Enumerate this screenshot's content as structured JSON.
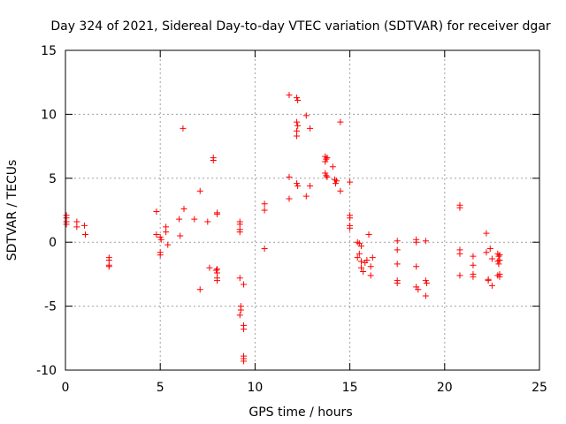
{
  "chart_data": {
    "type": "scatter",
    "title": "Day 324 of 2021, Sidereal Day-to-day VTEC variation (SDTVAR) for receiver dgar",
    "xlabel": "GPS time / hours",
    "ylabel": "SDTVAR / TECUs",
    "xlim": [
      0,
      25
    ],
    "ylim": [
      -10,
      15
    ],
    "xticks": [
      0,
      5,
      10,
      15,
      20,
      25
    ],
    "yticks": [
      -10,
      -5,
      0,
      5,
      10,
      15
    ],
    "xtick_labels": [
      "0",
      "5",
      "10",
      "15",
      "20",
      "25"
    ],
    "ytick_labels": [
      "-10",
      "-5",
      "0",
      "5",
      "10",
      "15"
    ],
    "grid": true,
    "marker": "+",
    "color": "#ff0000",
    "series": [
      {
        "name": "SDTVAR",
        "points": [
          [
            0.05,
            2.1
          ],
          [
            0.05,
            1.9
          ],
          [
            0.05,
            1.6
          ],
          [
            0.05,
            1.4
          ],
          [
            0.6,
            1.6
          ],
          [
            0.6,
            1.2
          ],
          [
            1.0,
            1.3
          ],
          [
            1.05,
            0.6
          ],
          [
            2.3,
            -1.2
          ],
          [
            2.3,
            -1.4
          ],
          [
            2.3,
            -1.8
          ],
          [
            2.3,
            -1.9
          ],
          [
            4.8,
            2.4
          ],
          [
            4.8,
            0.6
          ],
          [
            5.0,
            0.4
          ],
          [
            5.05,
            0.2
          ],
          [
            5.0,
            -0.8
          ],
          [
            5.0,
            -1.0
          ],
          [
            5.3,
            1.2
          ],
          [
            5.3,
            0.8
          ],
          [
            5.4,
            -0.2
          ],
          [
            6.0,
            1.8
          ],
          [
            6.05,
            0.5
          ],
          [
            6.2,
            8.9
          ],
          [
            6.25,
            2.6
          ],
          [
            6.8,
            1.8
          ],
          [
            7.1,
            -3.7
          ],
          [
            7.1,
            4.0
          ],
          [
            7.5,
            1.6
          ],
          [
            7.6,
            -2.0
          ],
          [
            7.8,
            6.6
          ],
          [
            7.8,
            6.4
          ],
          [
            8.0,
            2.2
          ],
          [
            8.0,
            2.3
          ],
          [
            7.95,
            -2.2
          ],
          [
            8.0,
            -2.4
          ],
          [
            8.0,
            -2.8
          ],
          [
            8.0,
            -3.0
          ],
          [
            8.0,
            -2.1
          ],
          [
            9.2,
            1.6
          ],
          [
            9.2,
            1.4
          ],
          [
            9.2,
            1.0
          ],
          [
            9.2,
            0.8
          ],
          [
            9.2,
            -2.8
          ],
          [
            9.25,
            -5.0
          ],
          [
            9.25,
            -5.3
          ],
          [
            9.2,
            -5.7
          ],
          [
            9.4,
            -3.3
          ],
          [
            9.4,
            -6.5
          ],
          [
            9.4,
            -6.8
          ],
          [
            9.4,
            -8.9
          ],
          [
            9.4,
            -9.1
          ],
          [
            9.4,
            -9.3
          ],
          [
            10.5,
            3.0
          ],
          [
            10.5,
            2.5
          ],
          [
            10.5,
            -0.5
          ],
          [
            11.8,
            11.5
          ],
          [
            11.8,
            5.1
          ],
          [
            11.8,
            3.4
          ],
          [
            12.2,
            11.3
          ],
          [
            12.25,
            11.1
          ],
          [
            12.2,
            9.4
          ],
          [
            12.25,
            9.1
          ],
          [
            12.2,
            8.7
          ],
          [
            12.2,
            8.3
          ],
          [
            12.2,
            4.6
          ],
          [
            12.25,
            4.4
          ],
          [
            12.7,
            9.9
          ],
          [
            12.7,
            3.6
          ],
          [
            12.9,
            4.4
          ],
          [
            12.9,
            8.9
          ],
          [
            13.7,
            6.7
          ],
          [
            13.75,
            6.5
          ],
          [
            13.7,
            6.3
          ],
          [
            13.8,
            6.6
          ],
          [
            13.7,
            5.4
          ],
          [
            13.75,
            5.2
          ],
          [
            13.8,
            5.1
          ],
          [
            14.1,
            5.9
          ],
          [
            14.2,
            4.9
          ],
          [
            14.25,
            4.6
          ],
          [
            14.3,
            4.8
          ],
          [
            14.5,
            4.0
          ],
          [
            14.5,
            9.4
          ],
          [
            15.0,
            4.7
          ],
          [
            15.0,
            2.1
          ],
          [
            15.0,
            1.9
          ],
          [
            15.0,
            1.3
          ],
          [
            15.0,
            1.1
          ],
          [
            15.4,
            0.0
          ],
          [
            15.5,
            -0.1
          ],
          [
            15.6,
            -0.3
          ],
          [
            15.5,
            -0.9
          ],
          [
            15.4,
            -1.2
          ],
          [
            15.6,
            -1.5
          ],
          [
            15.6,
            -2.0
          ],
          [
            15.7,
            -2.3
          ],
          [
            15.8,
            -1.6
          ],
          [
            15.9,
            -1.4
          ],
          [
            16.0,
            0.6
          ],
          [
            16.1,
            -1.9
          ],
          [
            16.1,
            -2.6
          ],
          [
            16.2,
            -1.2
          ],
          [
            17.5,
            0.1
          ],
          [
            17.5,
            -0.6
          ],
          [
            17.5,
            -1.7
          ],
          [
            17.5,
            -3.0
          ],
          [
            17.5,
            -3.2
          ],
          [
            18.5,
            0.2
          ],
          [
            18.5,
            0.0
          ],
          [
            18.5,
            -1.9
          ],
          [
            18.5,
            -3.5
          ],
          [
            18.6,
            -3.7
          ],
          [
            19.0,
            0.1
          ],
          [
            19.0,
            -3.0
          ],
          [
            19.05,
            -3.2
          ],
          [
            19.0,
            -4.2
          ],
          [
            20.8,
            2.9
          ],
          [
            20.8,
            2.7
          ],
          [
            20.8,
            -0.6
          ],
          [
            20.8,
            -0.9
          ],
          [
            20.8,
            -2.6
          ],
          [
            21.5,
            -1.1
          ],
          [
            21.5,
            -1.8
          ],
          [
            21.5,
            -2.5
          ],
          [
            21.5,
            -2.7
          ],
          [
            22.2,
            0.7
          ],
          [
            22.2,
            -0.8
          ],
          [
            22.3,
            -2.9
          ],
          [
            22.3,
            -3.0
          ],
          [
            22.4,
            -0.5
          ],
          [
            22.5,
            -1.3
          ],
          [
            22.5,
            -3.4
          ],
          [
            22.8,
            -0.9
          ],
          [
            22.85,
            -1.1
          ],
          [
            22.9,
            -1.4
          ],
          [
            22.8,
            -1.5
          ],
          [
            22.85,
            -1.7
          ],
          [
            22.9,
            -2.5
          ],
          [
            22.8,
            -2.6
          ],
          [
            22.9,
            -2.7
          ],
          [
            22.9,
            -1.0
          ]
        ]
      }
    ]
  }
}
